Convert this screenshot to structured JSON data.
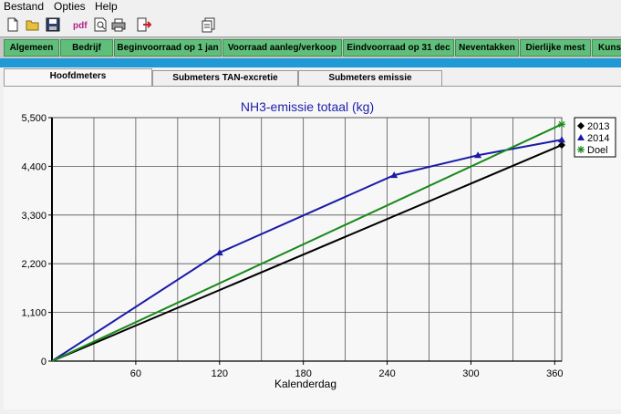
{
  "menu": {
    "items": [
      "Bestand",
      "Opties",
      "Help"
    ]
  },
  "toolbar": {
    "pdf_label": "pdf"
  },
  "nav": {
    "tabs": [
      "Algemeen",
      "Bedrijf",
      "Beginvoorraad op 1 jan",
      "Voorraad aanleg/verkoop",
      "Eindvoorraad op 31 dec",
      "Neventakken",
      "Dierlijke mest",
      "Kuns"
    ]
  },
  "subtabs": [
    "Hoofdmeters",
    "Submeters TAN-excretie",
    "Submeters emissie"
  ],
  "colors": {
    "accent_strip": "#1f9ad6",
    "nav_tab": "#5fbf7a",
    "series_2013": "#000000",
    "series_2014": "#1a1aa8",
    "series_doel": "#1a8a1a"
  },
  "chart_data": {
    "type": "line",
    "title": "NH3-emissie totaal (kg)",
    "xlabel": "Kalenderdag",
    "ylabel": "",
    "xlim": [
      0,
      365
    ],
    "ylim": [
      0,
      5500
    ],
    "x_ticks": [
      60,
      120,
      180,
      240,
      300,
      360
    ],
    "y_tick_labels": [
      "0",
      "1,100",
      "2,200",
      "3,300",
      "4,400",
      "5,500"
    ],
    "y_ticks": [
      0,
      1100,
      2200,
      3300,
      4400,
      5500
    ],
    "grid": true,
    "legend_position": "right",
    "series": [
      {
        "name": "2013",
        "x": [
          0,
          365
        ],
        "y": [
          0,
          4880
        ],
        "marker": "diamond"
      },
      {
        "name": "2014",
        "x": [
          0,
          120,
          245,
          305,
          365
        ],
        "y": [
          0,
          2450,
          4200,
          4650,
          5000
        ],
        "marker": "triangle"
      },
      {
        "name": "Doel",
        "x": [
          0,
          365
        ],
        "y": [
          0,
          5350
        ],
        "marker": "star"
      }
    ]
  }
}
